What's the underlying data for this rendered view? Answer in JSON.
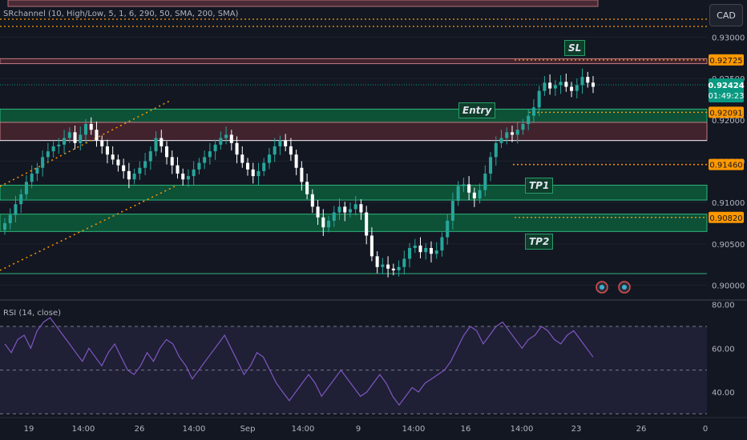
{
  "header": {
    "indicator": "SRchannel (10, High/Low, 5, 1, 6, 290, 50, SMA, 200, SMA)",
    "currency": "CAD"
  },
  "rsi_label": "RSI (14, close)",
  "annotations": {
    "sl": "SL",
    "entry": "Entry",
    "tp1": "TP1",
    "tp2": "TP2"
  },
  "colors": {
    "up": "#26a69a",
    "down": "#ffffff",
    "price_badge": "#089981",
    "level_badge": "#ff9800",
    "rsi": "#7e57c2"
  },
  "chart_data": [
    {
      "type": "candlestick",
      "x_ticks": [
        "19",
        "14:00",
        "26",
        "14:00",
        "Sep",
        "14:00",
        "9",
        "14:00",
        "16",
        "14:00",
        "23",
        "26",
        "0"
      ],
      "y_ticks": [
        "0.93000",
        "0.92500",
        "0.92000",
        "0.91500",
        "0.91000",
        "0.90500",
        "0.90000"
      ],
      "ylim": [
        0.8985,
        0.9345
      ],
      "current_price": "0.92424",
      "countdown": "01:49:23",
      "levels": [
        {
          "label": "0.92725",
          "value": 0.92725,
          "role": "SL"
        },
        {
          "label": "0.92091",
          "value": 0.92091,
          "role": "Entry"
        },
        {
          "label": "0.91460",
          "value": 0.9146,
          "role": "TP1"
        },
        {
          "label": "0.90820",
          "value": 0.9082,
          "role": "TP2"
        }
      ],
      "zones": [
        {
          "from": 0.9268,
          "to": 0.9274,
          "kind": "resistance"
        },
        {
          "from": 0.9197,
          "to": 0.9213,
          "kind": "support"
        },
        {
          "from": 0.9175,
          "to": 0.9197,
          "kind": "resistance"
        },
        {
          "from": 0.9103,
          "to": 0.9121,
          "kind": "support"
        },
        {
          "from": 0.9065,
          "to": 0.9086,
          "kind": "support"
        }
      ],
      "close_series": [
        0.9075,
        0.9085,
        0.9098,
        0.911,
        0.9125,
        0.9135,
        0.9142,
        0.9155,
        0.9162,
        0.9168,
        0.917,
        0.9178,
        0.9185,
        0.9172,
        0.9182,
        0.9195,
        0.9188,
        0.9175,
        0.9168,
        0.9158,
        0.9152,
        0.9145,
        0.9138,
        0.9128,
        0.9135,
        0.9142,
        0.915,
        0.9162,
        0.9178,
        0.9168,
        0.9155,
        0.9145,
        0.9135,
        0.9128,
        0.9132,
        0.914,
        0.9148,
        0.9155,
        0.9162,
        0.917,
        0.9178,
        0.9182,
        0.9172,
        0.9158,
        0.9148,
        0.914,
        0.9132,
        0.9138,
        0.9148,
        0.9158,
        0.9168,
        0.9175,
        0.9168,
        0.9158,
        0.9142,
        0.9125,
        0.911,
        0.9095,
        0.9082,
        0.907,
        0.9078,
        0.9088,
        0.9095,
        0.9088,
        0.9092,
        0.9098,
        0.9088,
        0.906,
        0.9035,
        0.9022,
        0.9025,
        0.902,
        0.9018,
        0.9022,
        0.9032,
        0.9045,
        0.9048,
        0.904,
        0.9045,
        0.9038,
        0.9042,
        0.9058,
        0.9078,
        0.9102,
        0.912,
        0.9122,
        0.9112,
        0.9105,
        0.9115,
        0.9135,
        0.9155,
        0.9172,
        0.9178,
        0.9185,
        0.9182,
        0.9188,
        0.9195,
        0.9205,
        0.9215,
        0.9235,
        0.9245,
        0.9238,
        0.9242,
        0.9246,
        0.924,
        0.9235,
        0.9242,
        0.9252,
        0.9245,
        0.924
      ]
    },
    {
      "type": "line",
      "name": "RSI (14, close)",
      "y_ticks": [
        "80.00",
        "60.00",
        "40.00"
      ],
      "ylim": [
        29,
        81
      ],
      "bands": [
        70,
        50,
        30
      ],
      "values": [
        62,
        58,
        64,
        66,
        60,
        68,
        72,
        74,
        70,
        66,
        62,
        58,
        54,
        60,
        56,
        52,
        58,
        62,
        56,
        50,
        48,
        52,
        58,
        54,
        60,
        64,
        62,
        56,
        52,
        46,
        50,
        54,
        58,
        62,
        66,
        60,
        54,
        48,
        52,
        58,
        56,
        50,
        44,
        40,
        36,
        40,
        44,
        48,
        44,
        38,
        42,
        46,
        50,
        46,
        42,
        38,
        40,
        44,
        48,
        44,
        38,
        34,
        38,
        42,
        40,
        44,
        46,
        48,
        50,
        54,
        60,
        66,
        70,
        68,
        62,
        66,
        70,
        72,
        68,
        64,
        60,
        64,
        66,
        70,
        68,
        64,
        62,
        66,
        68,
        64,
        60,
        56
      ]
    }
  ]
}
